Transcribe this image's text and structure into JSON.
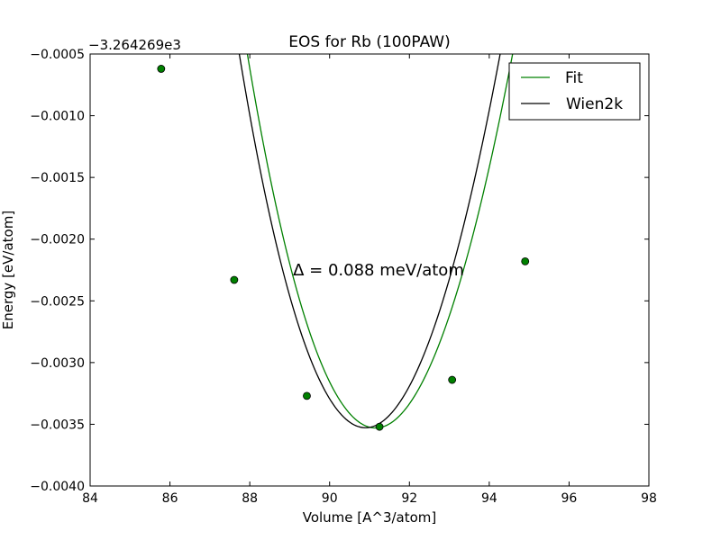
{
  "chart_data": {
    "type": "line",
    "title": "EOS for Rb (100PAW)",
    "xlabel": "Volume [A^3/atom]",
    "ylabel": "Energy [eV/atom]",
    "offset_label": "−3.264269e3",
    "annotation": "Δ = 0.088 meV/atom",
    "xlim": [
      84,
      98
    ],
    "ylim": [
      -0.004,
      -0.0005
    ],
    "xticks": [
      84,
      86,
      88,
      90,
      92,
      94,
      96,
      98
    ],
    "xtick_labels": [
      "84",
      "86",
      "88",
      "90",
      "92",
      "94",
      "96",
      "98"
    ],
    "yticks": [
      -0.004,
      -0.0035,
      -0.003,
      -0.0025,
      -0.002,
      -0.0015,
      -0.001,
      -0.0005
    ],
    "ytick_labels": [
      "−0.0040",
      "−0.0035",
      "−0.0030",
      "−0.0025",
      "−0.0020",
      "−0.0015",
      "−0.0010",
      "−0.0005"
    ],
    "grid": false,
    "legend_position": "top-right",
    "series": [
      {
        "name": "Fit",
        "kind": "line",
        "color": "#008000",
        "eos": {
          "v0": 91.15,
          "e0": -0.00353,
          "c2": 0.000276,
          "c3": -5.6e-06
        },
        "x_range": [
          85.78,
          96.45
        ]
      },
      {
        "name": "Wien2k",
        "kind": "line",
        "color": "#000000",
        "eos": {
          "v0": 90.9,
          "e0": -0.003528,
          "c2": 0.000285,
          "c3": -5.6e-06
        },
        "x_range": [
          85.78,
          96.3
        ]
      },
      {
        "name": "",
        "kind": "points",
        "color": "#008000",
        "x": [
          85.78,
          87.61,
          89.43,
          91.25,
          93.07,
          94.9
        ],
        "y": [
          -0.00062,
          -0.00233,
          -0.00327,
          -0.00352,
          -0.00314,
          -0.00218
        ]
      }
    ]
  }
}
